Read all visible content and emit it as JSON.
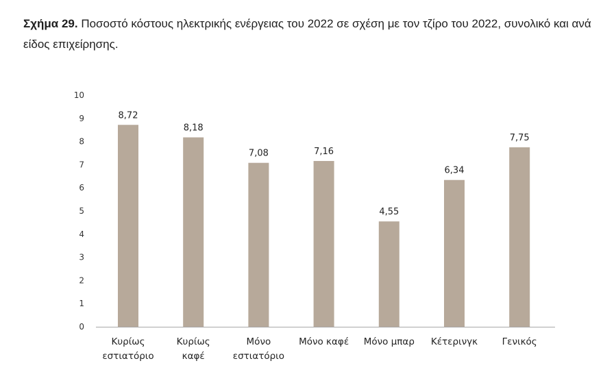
{
  "caption": {
    "label": "Σχήμα 29.",
    "text": "Ποσοστό κόστους ηλεκτρικής ενέργειας του 2022 σε σχέση με τον τζίρο του 2022, συνολικό και ανά είδος επιχείρησης."
  },
  "chart_data": {
    "type": "bar",
    "categories": [
      [
        "Κυρίως",
        "εστιατόριο"
      ],
      [
        "Κυρίως",
        "καφέ"
      ],
      [
        "Μόνο",
        "εστιατόριο"
      ],
      [
        "Μόνο καφέ"
      ],
      [
        "Μόνο μπαρ"
      ],
      [
        "Κέτερινγκ"
      ],
      [
        "Γενικός"
      ]
    ],
    "values": [
      8.72,
      8.18,
      7.08,
      7.16,
      4.55,
      6.34,
      7.75
    ],
    "value_labels": [
      "8,72",
      "8,18",
      "7,08",
      "7,16",
      "4,55",
      "6,34",
      "7,75"
    ],
    "yticks": [
      "0",
      "1",
      "2",
      "3",
      "4",
      "5",
      "6",
      "7",
      "8",
      "9",
      "10"
    ],
    "ylim": [
      0,
      10
    ],
    "grid": false,
    "bar_color": "#b7a99a",
    "axis_color": "#a8a8a8"
  }
}
